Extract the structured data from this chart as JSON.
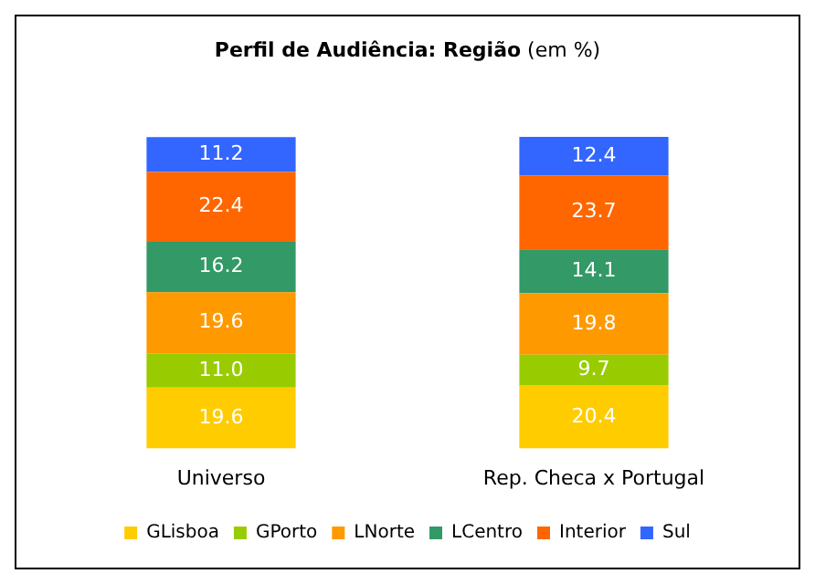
{
  "chart_data": {
    "type": "bar",
    "title": "Perfil de Audiência: Região",
    "subtitle": "(em %)",
    "categories": [
      "Universo",
      "Rep. Checa x Portugal"
    ],
    "stacked": true,
    "legend": "bottom",
    "grid": false,
    "series": [
      {
        "name": "GLisboa",
        "color": "#ffcc00",
        "values": [
          19.6,
          20.4
        ],
        "value_labels": [
          "19.6",
          "20.4"
        ]
      },
      {
        "name": "GPorto",
        "color": "#99cc00",
        "values": [
          11.0,
          9.7
        ],
        "value_labels": [
          "11.0",
          "9.7"
        ]
      },
      {
        "name": "LNorte",
        "color": "#ff9900",
        "values": [
          19.6,
          19.8
        ],
        "value_labels": [
          "19.6",
          "19.8"
        ]
      },
      {
        "name": "LCentro",
        "color": "#339966",
        "values": [
          16.2,
          14.1
        ],
        "value_labels": [
          "16.2",
          "14.1"
        ]
      },
      {
        "name": "Interior",
        "color": "#ff6600",
        "values": [
          22.4,
          23.7
        ],
        "value_labels": [
          "22.4",
          "23.7"
        ]
      },
      {
        "name": "Sul",
        "color": "#3366ff",
        "values": [
          11.2,
          12.4
        ],
        "value_labels": [
          "11.2",
          "12.4"
        ]
      }
    ]
  }
}
